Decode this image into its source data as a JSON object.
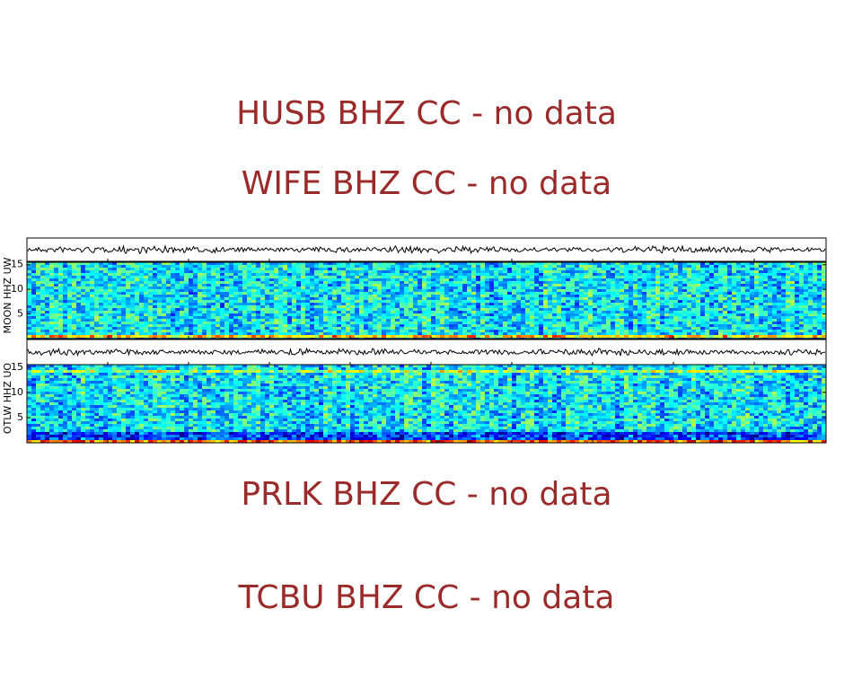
{
  "no_data_labels": [
    "HUSB BHZ CC - no data",
    "WIFE BHZ CC - no data",
    "PRLK BHZ CC - no data",
    "TCBU BHZ CC - no data"
  ],
  "panels": [
    {
      "label": "MOON HHZ UW",
      "ylim": [
        0,
        15.5
      ],
      "yticks": [
        5,
        10,
        15
      ]
    },
    {
      "label": "OTLW HHZ UO",
      "ylim": [
        0,
        15.5
      ],
      "yticks": [
        5,
        10,
        15
      ]
    }
  ]
}
